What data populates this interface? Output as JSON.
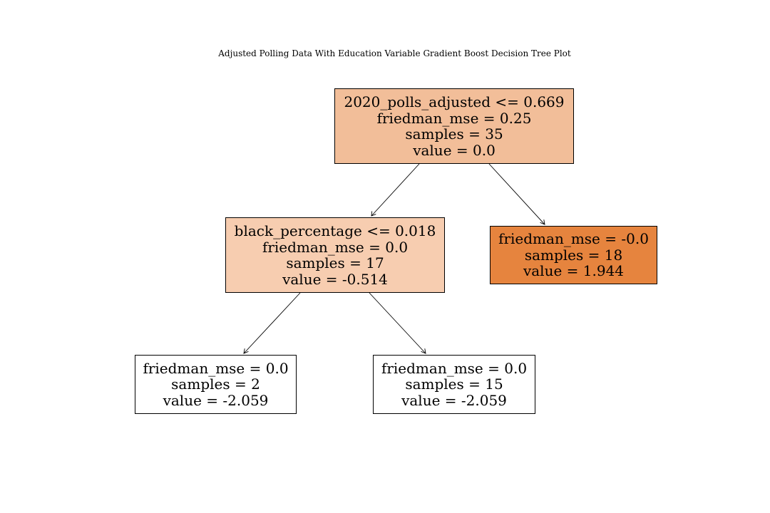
{
  "title": "Adjusted Polling Data With Education Variable Gradient Boost Decision Tree Plot",
  "colors": {
    "node_0": "#f2be99",
    "node_1": "#f7cdb0",
    "node_2": "#e6843e",
    "node_3": "#ffffff",
    "node_4": "#ffffff",
    "edge": "#000000"
  },
  "nodes": [
    {
      "split": "2020_polls_adjusted <= 0.669",
      "friedman_mse": "friedman_mse = 0.25",
      "samples": "samples = 35",
      "value": "value = 0.0"
    },
    {
      "split": "black_percentage <= 0.018",
      "friedman_mse": "friedman_mse = 0.0",
      "samples": "samples = 17",
      "value": "value = -0.514"
    },
    {
      "friedman_mse": "friedman_mse = -0.0",
      "samples": "samples = 18",
      "value": "value = 1.944"
    },
    {
      "friedman_mse": "friedman_mse = 0.0",
      "samples": "samples = 2",
      "value": "value = -2.059"
    },
    {
      "friedman_mse": "friedman_mse = 0.0",
      "samples": "samples = 15",
      "value": "value = -2.059"
    }
  ],
  "edges": [
    {
      "from": 0,
      "to": 1
    },
    {
      "from": 0,
      "to": 2
    },
    {
      "from": 1,
      "to": 3
    },
    {
      "from": 1,
      "to": 4
    }
  ]
}
